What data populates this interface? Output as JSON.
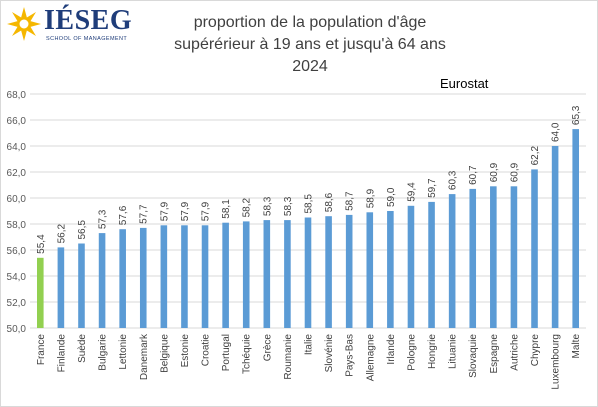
{
  "logo": {
    "name": "IÉSEG",
    "tagline": "SCHOOL OF MANAGEMENT"
  },
  "title_lines": [
    "proportion de la population d'âge",
    "supérérieur à 19 ans et jusqu'à 64 ans",
    "2024"
  ],
  "source": "Eurostat",
  "colors": {
    "bar": "#5b9bd5",
    "highlight": "#92d050",
    "grid": "#d9d9d9",
    "logo": "#1f3d7a",
    "logo_accent": "#f5b700"
  },
  "chart_data": {
    "type": "bar",
    "title": "proportion de la population d'âge supérérieur à 19 ans et jusqu'à 64 ans 2024",
    "xlabel": "",
    "ylabel": "",
    "ylim": [
      50,
      68
    ],
    "yticks": [
      "50,0",
      "52,0",
      "54,0",
      "56,0",
      "58,0",
      "60,0",
      "62,0",
      "64,0",
      "66,0",
      "68,0"
    ],
    "grid": true,
    "highlight_category": "France",
    "categories": [
      "France",
      "Finlande",
      "Suède",
      "Bulgarie",
      "Lettonie",
      "Danemark",
      "Belgique",
      "Estonie",
      "Croatie",
      "Portugal",
      "Tchéquie",
      "Grèce",
      "Roumanie",
      "Italie",
      "Slovénie",
      "Pays-Bas",
      "Allemagne",
      "Irlande",
      "Pologne",
      "Hongrie",
      "Lituanie",
      "Slovaquie",
      "Espagne",
      "Autriche",
      "Chypre",
      "Luxembourg",
      "Malte"
    ],
    "values": [
      55.4,
      56.2,
      56.5,
      57.3,
      57.6,
      57.7,
      57.9,
      57.9,
      57.9,
      58.1,
      58.2,
      58.3,
      58.3,
      58.5,
      58.6,
      58.7,
      58.9,
      59.0,
      59.4,
      59.7,
      60.3,
      60.7,
      60.9,
      60.9,
      62.2,
      64.0,
      65.3
    ],
    "value_labels": [
      "55,4",
      "56,2",
      "56,5",
      "57,3",
      "57,6",
      "57,7",
      "57,9",
      "57,9",
      "57,9",
      "58,1",
      "58,2",
      "58,3",
      "58,3",
      "58,5",
      "58,6",
      "58,7",
      "58,9",
      "59,0",
      "59,4",
      "59,7",
      "60,3",
      "60,7",
      "60,9",
      "60,9",
      "62,2",
      "64,0",
      "65,3"
    ]
  }
}
